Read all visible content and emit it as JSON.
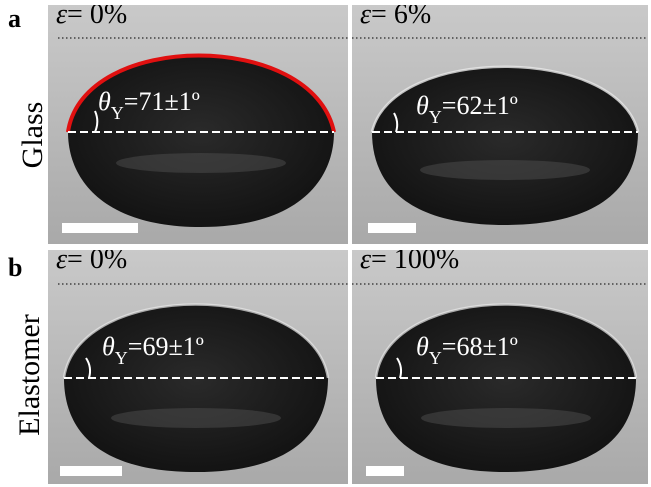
{
  "rows": [
    {
      "letter": "a",
      "label": "Glass",
      "panels": [
        {
          "strain_symbol": "ε",
          "strain_value": "= 0%",
          "theta": "θ",
          "sub": "Y",
          "angle_value": "=71±1º"
        },
        {
          "strain_symbol": "ε",
          "strain_value": "= 6%",
          "theta": "θ",
          "sub": "Y",
          "angle_value": "=62±1º"
        }
      ]
    },
    {
      "letter": "b",
      "label": "Elastomer",
      "panels": [
        {
          "strain_symbol": "ε",
          "strain_value": "= 0%",
          "theta": "θ",
          "sub": "Y",
          "angle_value": "=69±1º"
        },
        {
          "strain_symbol": "ε",
          "strain_value": "= 100%",
          "theta": "θ",
          "sub": "Y",
          "angle_value": "=68±1º"
        }
      ]
    }
  ],
  "colors": {
    "fit_curve": "#e01010",
    "background_gray": "#b9b9b9",
    "droplet": "#1e1e1e"
  }
}
